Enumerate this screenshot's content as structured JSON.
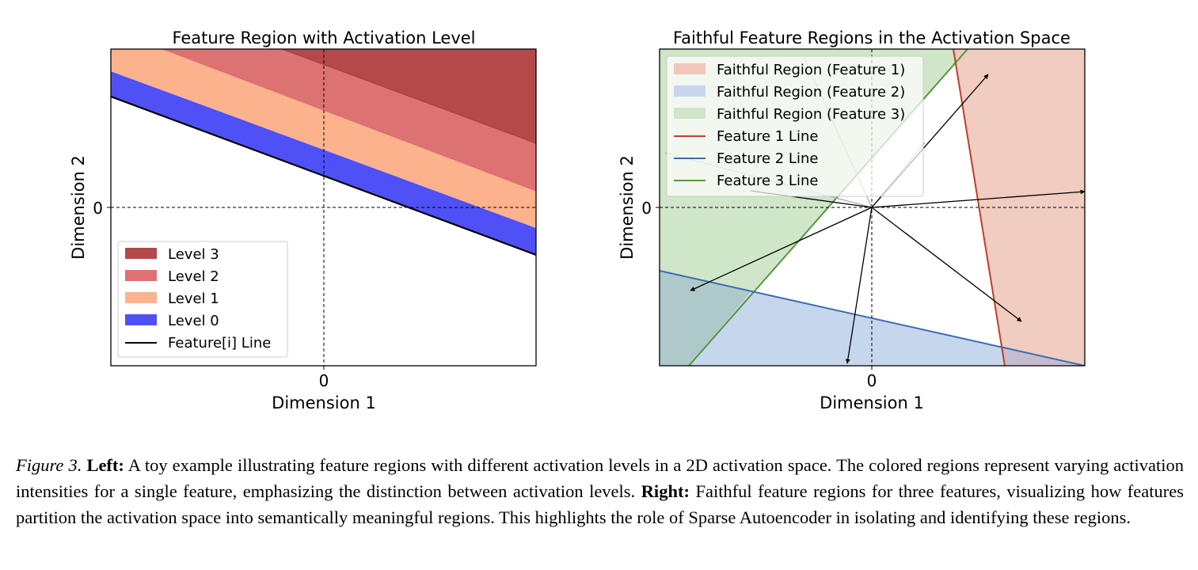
{
  "colors": {
    "level3": "#b5484b",
    "level2": "#dd7273",
    "level1": "#fbb28d",
    "level0": "#5050f7",
    "feature1": "#b8422a",
    "feature2": "#3c6bb0",
    "feature3": "#56973e",
    "region1": "#f0c7ba",
    "region2": "#c8d7ee",
    "region3": "#cfe6c8"
  },
  "chart_data": [
    {
      "type": "area",
      "title": "Feature Region with Activation Level",
      "xlabel": "Dimension 1",
      "ylabel": "Dimension 2",
      "xticks": [
        "0"
      ],
      "yticks": [
        "0"
      ],
      "grid": false,
      "legend_position": "lower-left",
      "series": [
        {
          "name": "Level 3",
          "color": "#b5484b"
        },
        {
          "name": "Level 2",
          "color": "#dd7273"
        },
        {
          "name": "Level 1",
          "color": "#fbb28d"
        },
        {
          "name": "Level 0",
          "color": "#5050f7"
        },
        {
          "name": "Feature[i] Line",
          "color": "#000000"
        }
      ]
    },
    {
      "type": "area",
      "title": "Faithful Feature Regions in the Activation Space",
      "xlabel": "Dimension 1",
      "ylabel": "Dimension 2",
      "xticks": [
        "0"
      ],
      "yticks": [
        "0"
      ],
      "grid": false,
      "legend_position": "upper-left",
      "series": [
        {
          "name": "Faithful Region (Feature 1)",
          "color": "#f0c7ba"
        },
        {
          "name": "Faithful Region (Feature 2)",
          "color": "#c8d7ee"
        },
        {
          "name": "Faithful Region (Feature 3)",
          "color": "#cfe6c8"
        },
        {
          "name": "Feature 1 Line",
          "color": "#b8422a"
        },
        {
          "name": "Feature 2 Line",
          "color": "#3c6bb0"
        },
        {
          "name": "Feature 3 Line",
          "color": "#56973e"
        }
      ]
    }
  ],
  "caption": {
    "label": "Figure 3.",
    "left_label": "Left:",
    "left_text": "A toy example illustrating feature regions with different activation levels in a 2D activation space. The colored regions represent varying activation intensities for a single feature, emphasizing the distinction between activation levels.",
    "right_label": "Right:",
    "right_text": "Faithful feature regions for three features, visualizing how features partition the activation space into semantically meaningful regions. This highlights the role of Sparse Autoencoder in isolating and identifying these regions."
  }
}
